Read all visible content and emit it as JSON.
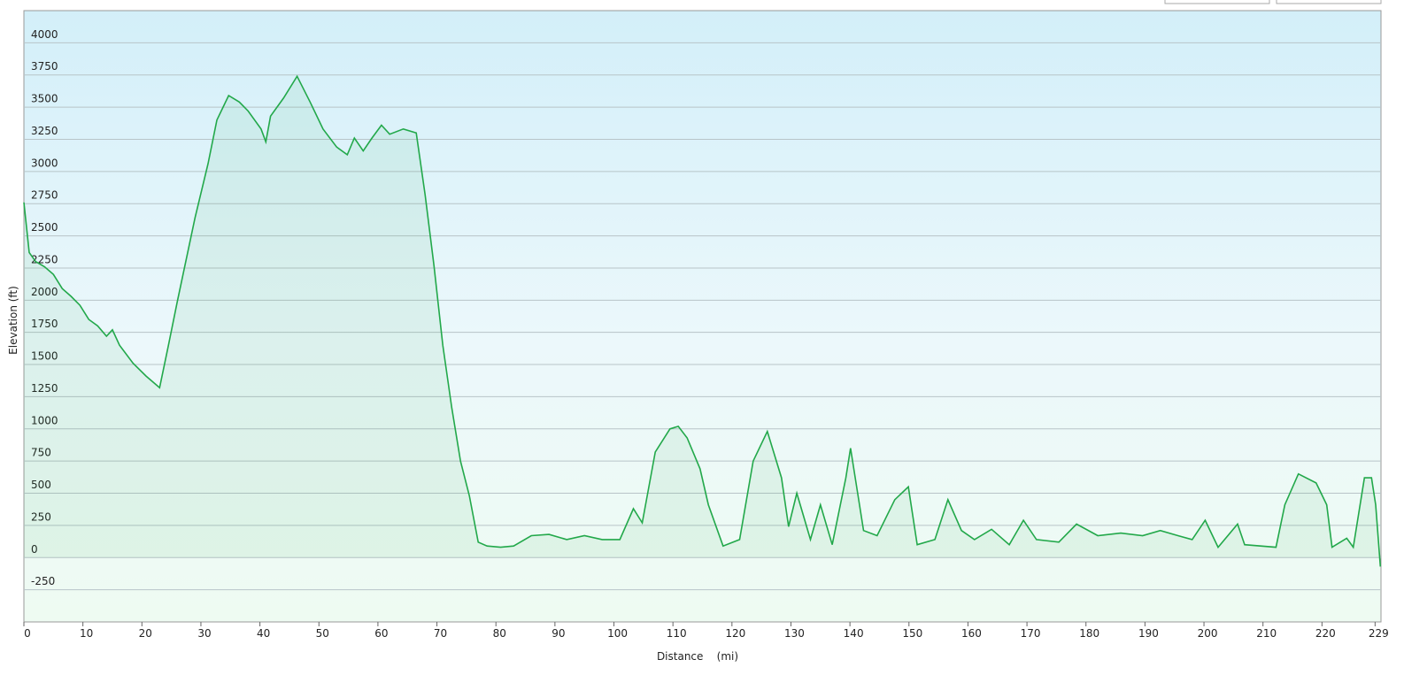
{
  "chart_data": {
    "type": "area",
    "x_label": "Distance    (mi)",
    "y_label": "Elevation (ft)",
    "x": [
      0,
      0.9,
      2,
      3.5,
      5,
      6.5,
      8,
      9.5,
      11,
      12.5,
      14,
      15,
      16.2,
      18.5,
      20.7,
      23,
      24.5,
      26,
      29,
      31.2,
      32.7,
      34.7,
      36.5,
      38,
      40.2,
      41,
      41.8,
      44,
      46.3,
      48.5,
      50.7,
      53,
      54.8,
      56,
      57.5,
      59,
      60.6,
      62,
      64.3,
      66.5,
      68,
      69.5,
      71,
      72.5,
      74,
      75.5,
      77,
      78.5,
      80.8,
      83,
      86,
      89,
      92,
      95,
      98,
      101,
      103.3,
      104.8,
      107,
      109.5,
      110.9,
      112.4,
      114.6,
      116,
      118.5,
      121.3,
      123.6,
      126,
      128.4,
      129.6,
      131,
      133.3,
      135,
      137,
      139.3,
      140.1,
      142.3,
      144.6,
      147.6,
      149.9,
      151.4,
      154.4,
      156.6,
      158.9,
      161.1,
      164,
      167,
      169.4,
      171.6,
      175.4,
      178.4,
      182,
      185.9,
      189.6,
      192.6,
      195.6,
      198,
      200.2,
      202.4,
      205.7,
      206.9,
      212.2,
      213.7,
      216,
      219,
      220.8,
      221.7,
      224.2,
      225.3,
      227.2,
      228.4,
      229.1,
      229.9
    ],
    "series": [
      {
        "name": "Elevation",
        "color": "#22a84a",
        "values": [
          2760,
          2370,
          2300,
          2260,
          2200,
          2090,
          2030,
          1960,
          1850,
          1800,
          1720,
          1770,
          1650,
          1510,
          1410,
          1320,
          1650,
          1990,
          2640,
          3060,
          3400,
          3590,
          3540,
          3470,
          3330,
          3230,
          3430,
          3570,
          3740,
          3540,
          3330,
          3190,
          3130,
          3260,
          3160,
          3260,
          3360,
          3290,
          3330,
          3300,
          2820,
          2270,
          1650,
          1170,
          750,
          480,
          120,
          90,
          80,
          90,
          170,
          180,
          140,
          170,
          140,
          140,
          380,
          270,
          820,
          1000,
          1020,
          930,
          690,
          410,
          90,
          140,
          750,
          980,
          620,
          240,
          500,
          140,
          410,
          100,
          620,
          850,
          210,
          170,
          450,
          550,
          100,
          140,
          450,
          210,
          140,
          220,
          100,
          290,
          140,
          120,
          260,
          170,
          190,
          170,
          210,
          170,
          140,
          290,
          80,
          260,
          100,
          80,
          410,
          650,
          580,
          410,
          80,
          150,
          80,
          620,
          620,
          410,
          -70
        ]
      }
    ],
    "xlim": [
      0,
      230
    ],
    "ylim": [
      -500,
      4250
    ],
    "xticks": [
      0,
      10,
      20,
      30,
      40,
      50,
      60,
      70,
      80,
      90,
      100,
      110,
      120,
      130,
      140,
      150,
      160,
      170,
      180,
      190,
      200,
      210,
      220,
      229
    ],
    "yticks": [
      -250,
      0,
      250,
      500,
      750,
      1000,
      1250,
      1500,
      1750,
      2000,
      2250,
      2500,
      2750,
      3000,
      3250,
      3500,
      3750,
      4000
    ],
    "grid": true
  }
}
